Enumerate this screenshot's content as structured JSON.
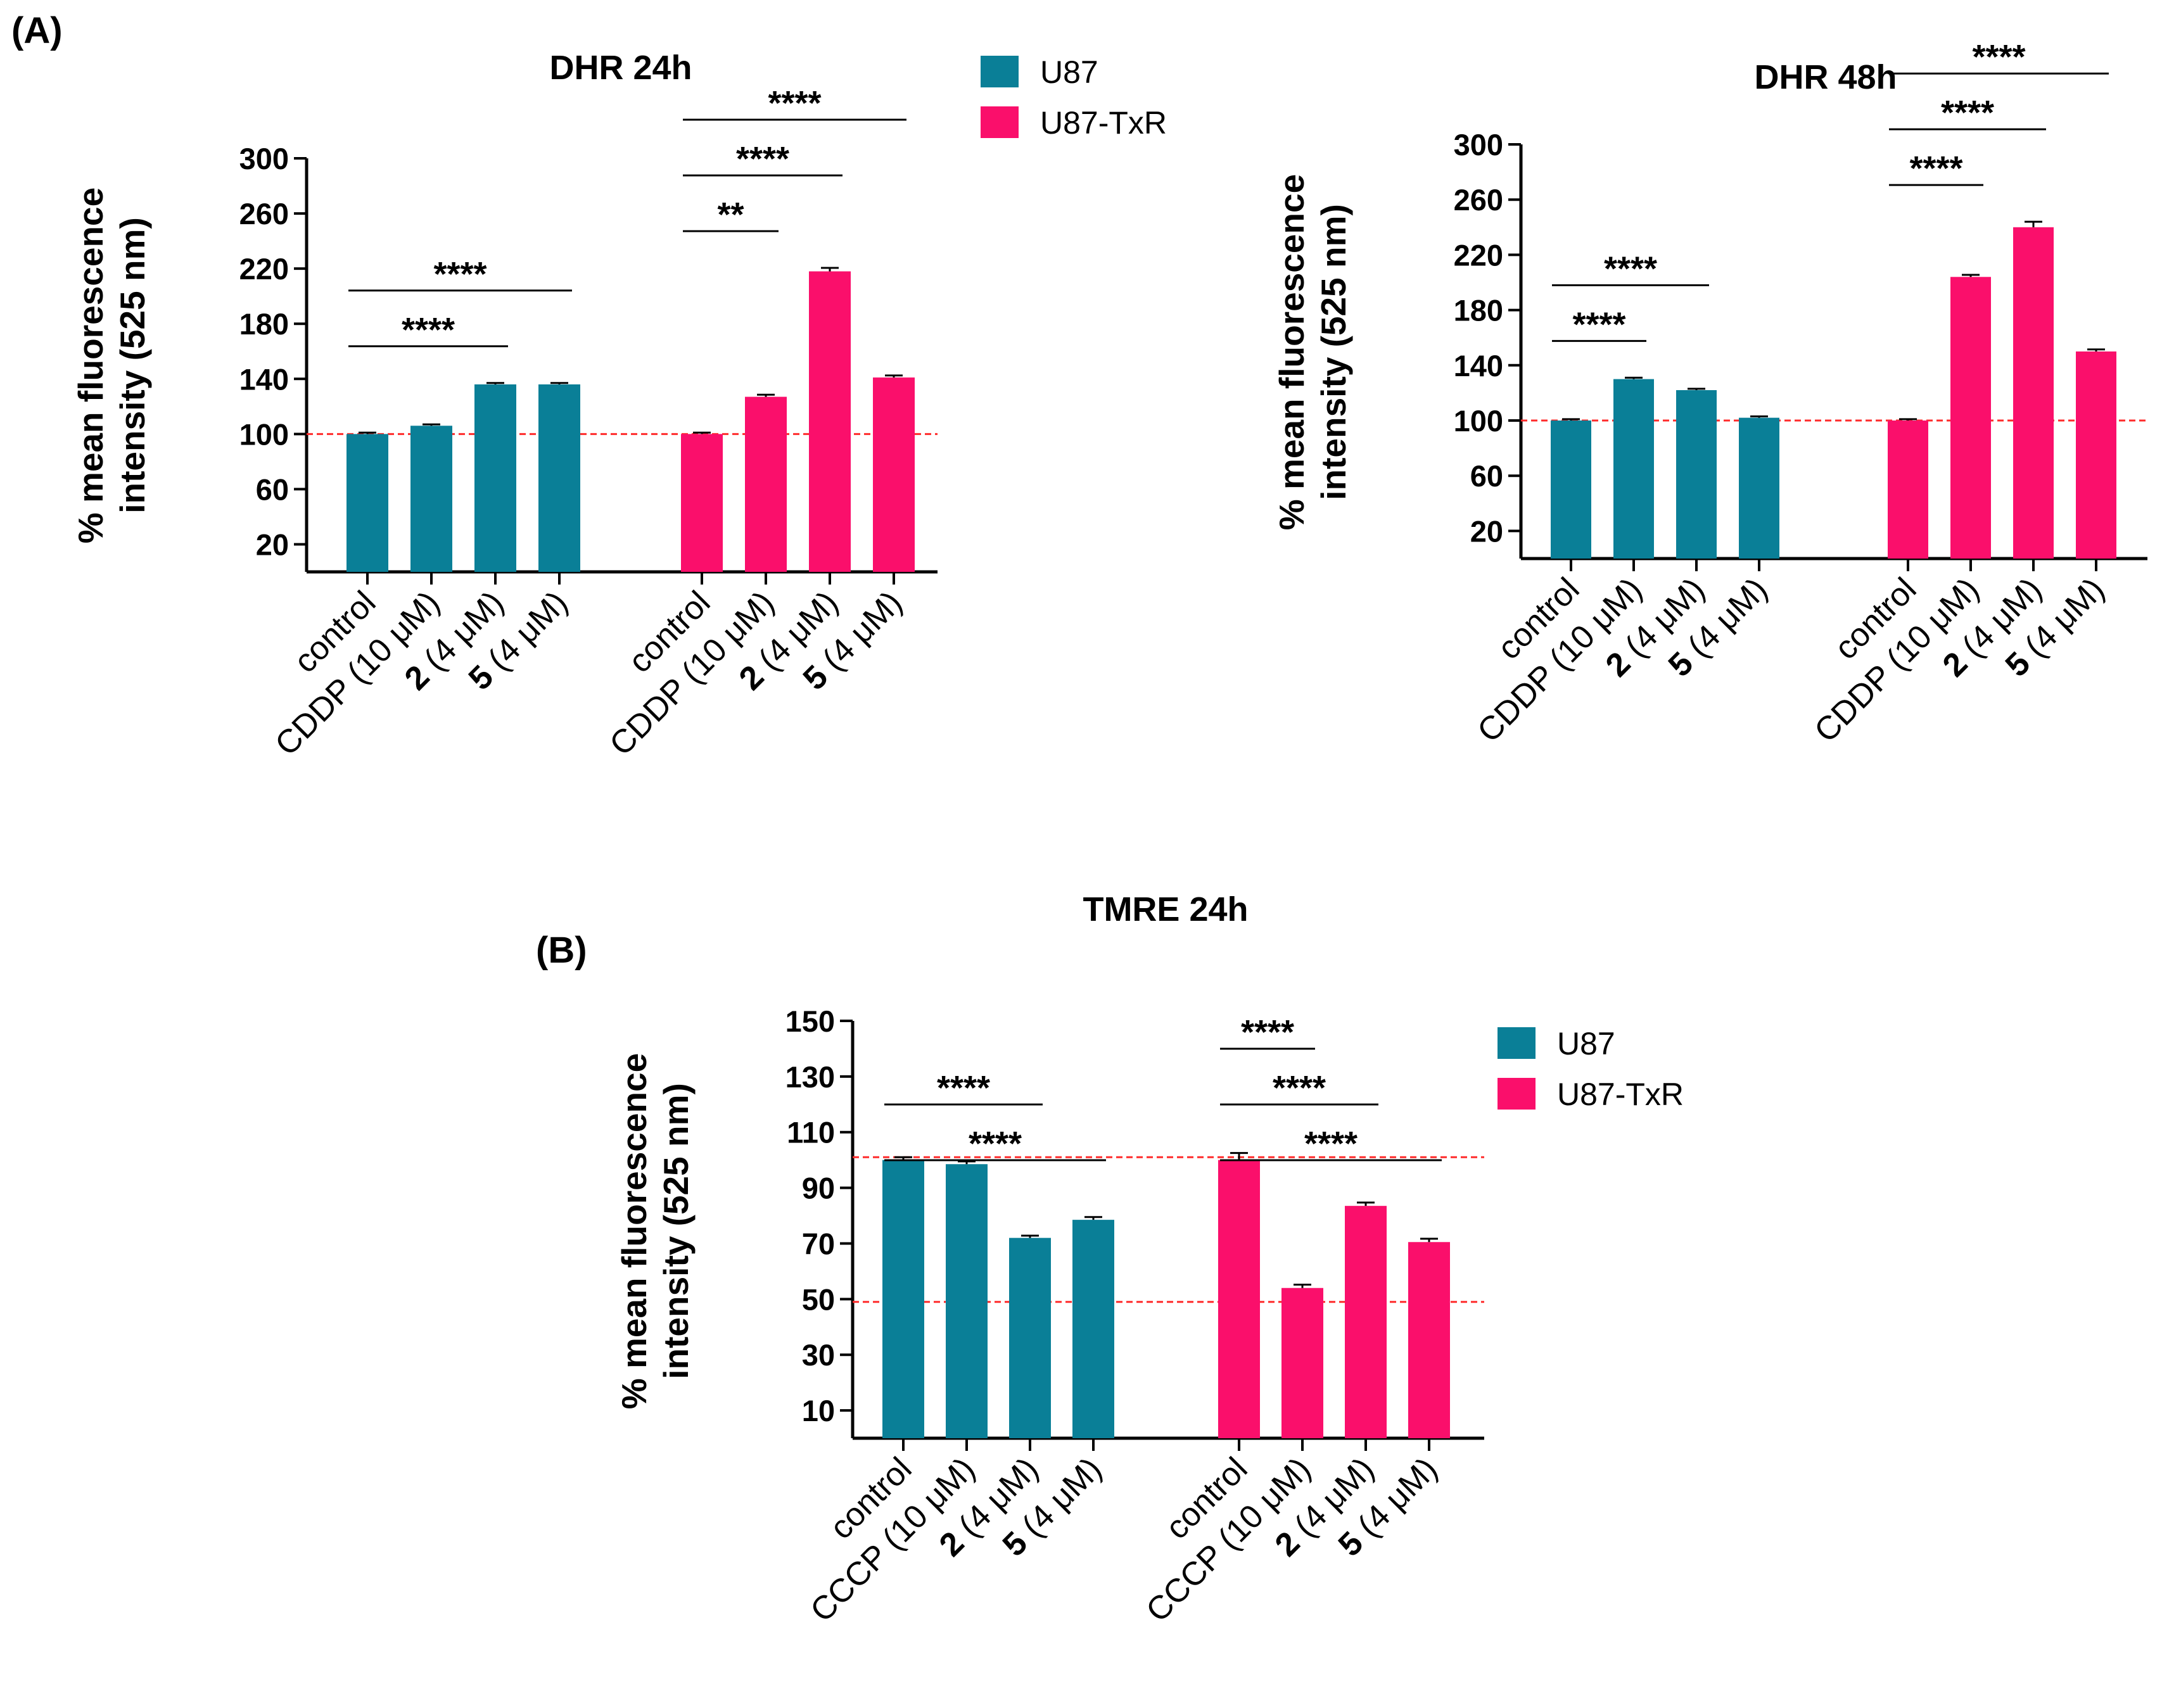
{
  "figure": {
    "panel_a_label": "(A)",
    "panel_b_label": "(B)"
  },
  "legend_a": {
    "items": [
      {
        "label": "U87",
        "color": "#0a7f97"
      },
      {
        "label": "U87-TxR",
        "color": "#fa0f6b"
      }
    ]
  },
  "legend_b": {
    "items": [
      {
        "label": "U87",
        "color": "#0a7f97"
      },
      {
        "label": "U87-TxR",
        "color": "#fa0f6b"
      }
    ]
  },
  "chart_data": [
    {
      "id": "dhr24",
      "type": "bar",
      "title": "DHR 24h",
      "ylabel": [
        "% mean fluorescence",
        "intensity (525 nm)"
      ],
      "ylim": [
        0,
        300
      ],
      "yticks": [
        20,
        60,
        100,
        140,
        180,
        220,
        260,
        300
      ],
      "reference_lines": [
        100
      ],
      "groups": [
        {
          "name": "U87",
          "color": "#0a7f97",
          "bars": [
            {
              "label": "control",
              "bold_prefix": "",
              "value": 100,
              "error": 1
            },
            {
              "label": "CDDP (10 μM)",
              "bold_prefix": "",
              "value": 106,
              "error": 1
            },
            {
              "label": " (4 μM)",
              "bold_prefix": "2",
              "value": 136,
              "error": 1
            },
            {
              "label": " (4 μM)",
              "bold_prefix": "5",
              "value": 136,
              "error": 1
            }
          ],
          "significance": [
            {
              "from": 0,
              "to": 2,
              "label": "****"
            },
            {
              "from": 0,
              "to": 3,
              "label": "****"
            }
          ]
        },
        {
          "name": "U87-TxR",
          "color": "#fa0f6b",
          "bars": [
            {
              "label": "control",
              "bold_prefix": "",
              "value": 100,
              "error": 1
            },
            {
              "label": "CDDP (10 μM)",
              "bold_prefix": "",
              "value": 127,
              "error": 1.5
            },
            {
              "label": " (4 μM)",
              "bold_prefix": "2",
              "value": 218,
              "error": 2.5
            },
            {
              "label": " (4 μM)",
              "bold_prefix": "5",
              "value": 141,
              "error": 1.5
            }
          ],
          "significance": [
            {
              "from": 0,
              "to": 1,
              "label": "**"
            },
            {
              "from": 0,
              "to": 2,
              "label": "****"
            },
            {
              "from": 0,
              "to": 3,
              "label": "****"
            }
          ]
        }
      ]
    },
    {
      "id": "dhr48",
      "type": "bar",
      "title": "DHR 48h",
      "ylabel": [
        "% mean fluorescence",
        "intensity (525 nm)"
      ],
      "ylim": [
        0,
        300
      ],
      "yticks": [
        20,
        60,
        100,
        140,
        180,
        220,
        260,
        300
      ],
      "reference_lines": [
        100
      ],
      "groups": [
        {
          "name": "U87",
          "color": "#0a7f97",
          "bars": [
            {
              "label": "control",
              "bold_prefix": "",
              "value": 100,
              "error": 1
            },
            {
              "label": "CDDP (10 μM)",
              "bold_prefix": "",
              "value": 130,
              "error": 1
            },
            {
              "label": " (4 μM)",
              "bold_prefix": "2",
              "value": 122,
              "error": 1
            },
            {
              "label": " (4 μM)",
              "bold_prefix": "5",
              "value": 102,
              "error": 1
            }
          ],
          "significance": [
            {
              "from": 0,
              "to": 1,
              "label": "****"
            },
            {
              "from": 0,
              "to": 2,
              "label": "****"
            }
          ]
        },
        {
          "name": "U87-TxR",
          "color": "#fa0f6b",
          "bars": [
            {
              "label": "control",
              "bold_prefix": "",
              "value": 100,
              "error": 1
            },
            {
              "label": "CDDP (10 μM)",
              "bold_prefix": "",
              "value": 204,
              "error": 1.5
            },
            {
              "label": " (4 μM)",
              "bold_prefix": "2",
              "value": 240,
              "error": 4
            },
            {
              "label": " (4 μM)",
              "bold_prefix": "5",
              "value": 150,
              "error": 1.5
            }
          ],
          "significance": [
            {
              "from": 0,
              "to": 1,
              "label": "****"
            },
            {
              "from": 0,
              "to": 2,
              "label": "****"
            },
            {
              "from": 0,
              "to": 3,
              "label": "****"
            }
          ]
        }
      ]
    },
    {
      "id": "tmre24",
      "type": "bar",
      "title": "TMRE 24h",
      "ylabel": [
        "% mean fluorescence",
        "intensity (525 nm)"
      ],
      "ylim": [
        0,
        150
      ],
      "yticks": [
        10,
        30,
        50,
        70,
        90,
        110,
        130,
        150
      ],
      "reference_lines": [
        101,
        49
      ],
      "groups": [
        {
          "name": "U87",
          "color": "#0a7f97",
          "bars": [
            {
              "label": "control",
              "bold_prefix": "",
              "value": 100,
              "error": 1
            },
            {
              "label": "CCCP (10 μM)",
              "bold_prefix": "",
              "value": 98.5,
              "error": 1
            },
            {
              "label": " (4 μM)",
              "bold_prefix": "2",
              "value": 72,
              "error": 0.8
            },
            {
              "label": " (4 μM)",
              "bold_prefix": "5",
              "value": 78.5,
              "error": 1
            }
          ],
          "significance": [
            {
              "from": 0,
              "to": 2,
              "label": "****"
            },
            {
              "from": 0,
              "to": 3,
              "label": "****"
            }
          ]
        },
        {
          "name": "U87-TxR",
          "color": "#fa0f6b",
          "bars": [
            {
              "label": "control",
              "bold_prefix": "",
              "value": 100,
              "error": 2.5
            },
            {
              "label": "CCCP (10 μM)",
              "bold_prefix": "",
              "value": 54,
              "error": 1.2
            },
            {
              "label": " (4 μM)",
              "bold_prefix": "2",
              "value": 83.5,
              "error": 1.2
            },
            {
              "label": " (4 μM)",
              "bold_prefix": "5",
              "value": 70.5,
              "error": 1.2
            }
          ],
          "significance": [
            {
              "from": 0,
              "to": 1,
              "label": "****"
            },
            {
              "from": 0,
              "to": 2,
              "label": "****"
            },
            {
              "from": 0,
              "to": 3,
              "label": "****"
            }
          ]
        }
      ]
    }
  ]
}
